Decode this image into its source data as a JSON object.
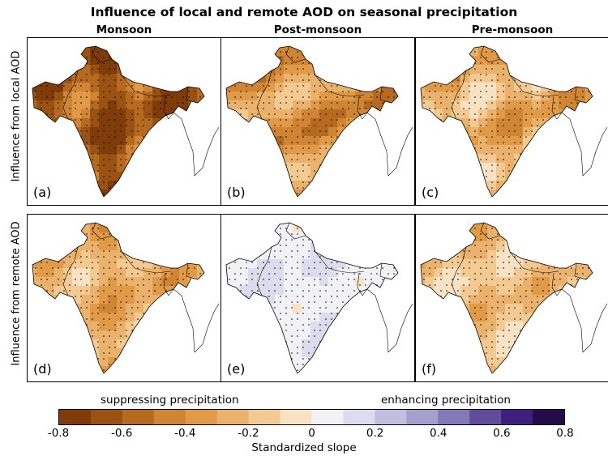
{
  "title": "Influence of local and remote AOD on seasonal precipitation",
  "columns": [
    "Monsoon",
    "Post-monsoon",
    "Pre-monsoon"
  ],
  "rows": [
    "Influence from local AOD",
    "Influence from remote AOD"
  ],
  "panels": [
    {
      "label": "(a)",
      "row": 0,
      "col": 0
    },
    {
      "label": "(b)",
      "row": 0,
      "col": 1
    },
    {
      "label": "(c)",
      "row": 0,
      "col": 2
    },
    {
      "label": "(d)",
      "row": 1,
      "col": 0
    },
    {
      "label": "(e)",
      "row": 1,
      "col": 1
    },
    {
      "label": "(f)",
      "row": 1,
      "col": 2
    }
  ],
  "colorbar": {
    "left_caption": "suppressing precipitation",
    "right_caption": "enhancing precipitation",
    "label": "Standardized slope",
    "min": -0.8,
    "max": 0.8,
    "tick_labels": [
      "-0.8",
      "-0.6",
      "-0.4",
      "-0.2",
      "0",
      "0.2",
      "0.4",
      "0.6",
      "0.8"
    ],
    "colors": [
      "#7f3b08",
      "#9a5212",
      "#b56a1f",
      "#cf8534",
      "#e09a48",
      "#eab26c",
      "#f3ca92",
      "#f8e2c4",
      "#f2f2f6",
      "#dcdcee",
      "#c1bfe0",
      "#a49fcd",
      "#8479b8",
      "#5f4d9c",
      "#3f1f7e",
      "#240b4a"
    ]
  }
}
